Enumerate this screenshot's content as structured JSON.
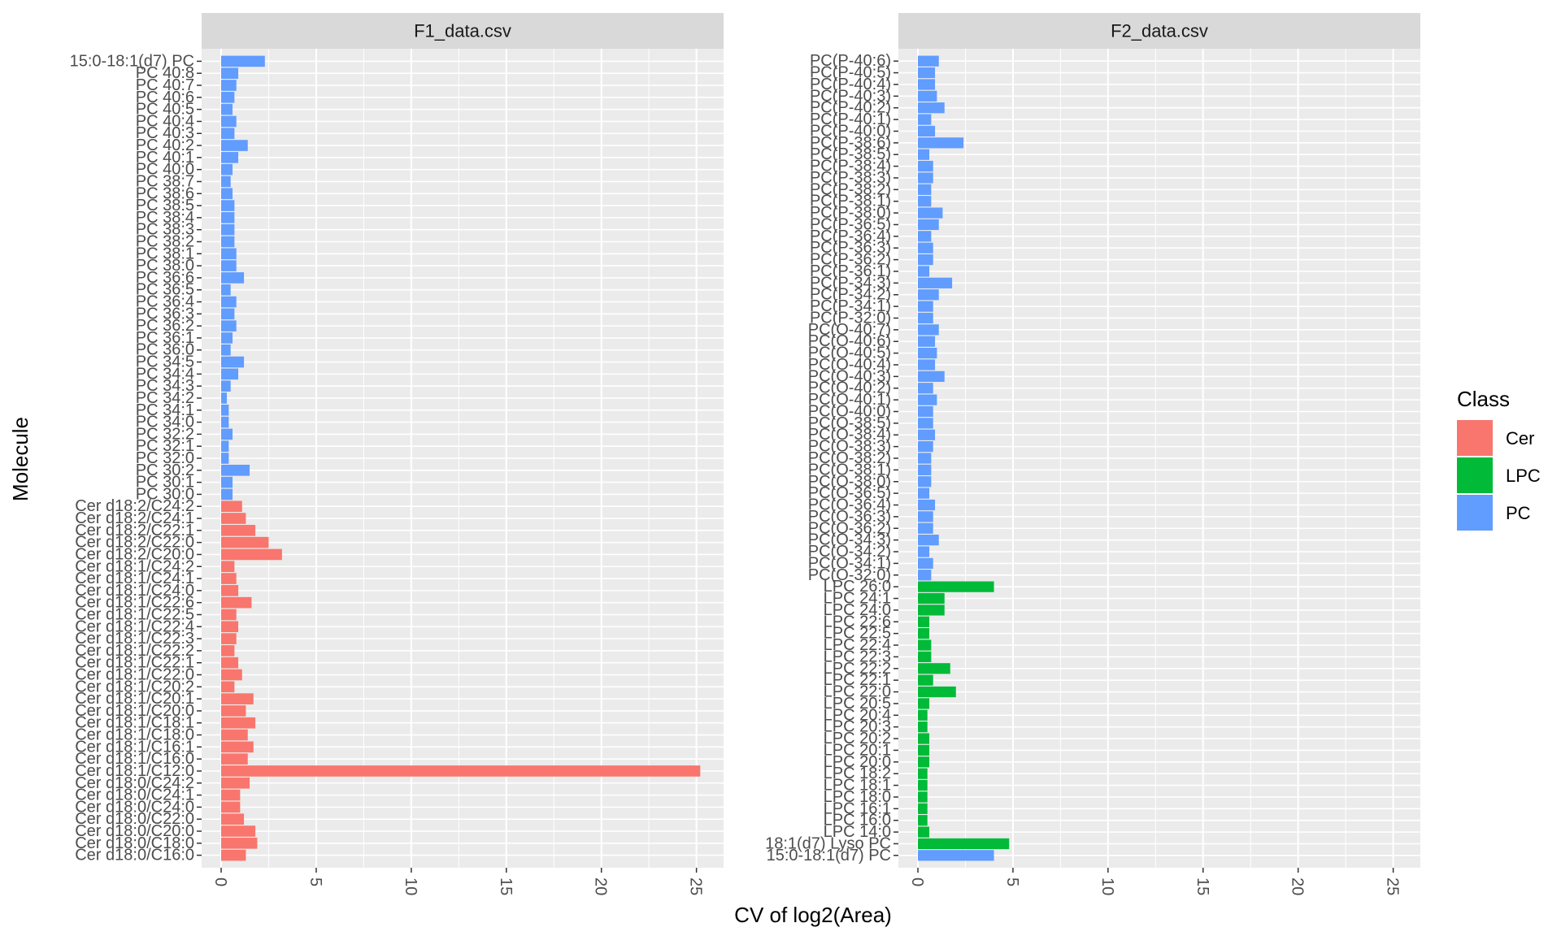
{
  "chart_data": {
    "type": "bar",
    "orientation": "horizontal",
    "xlabel": "CV of log2(Area)",
    "ylabel": "Molecule",
    "xlim": [
      0,
      26
    ],
    "x_ticks": [
      0,
      5,
      10,
      15,
      20,
      25
    ],
    "grid": true,
    "legend": {
      "title": "Class",
      "position": "right",
      "entries": [
        {
          "label": "Cer",
          "color": "#F8766D"
        },
        {
          "label": "LPC",
          "color": "#00BA38"
        },
        {
          "label": "PC",
          "color": "#619CFF"
        }
      ]
    },
    "panels": [
      {
        "title": "F1_data.csv",
        "bars": [
          {
            "label": "15:0-18:1(d7) PC",
            "value": 2.3,
            "class": "PC"
          },
          {
            "label": "PC 40:8",
            "value": 0.9,
            "class": "PC"
          },
          {
            "label": "PC 40:7",
            "value": 0.8,
            "class": "PC"
          },
          {
            "label": "PC 40:6",
            "value": 0.7,
            "class": "PC"
          },
          {
            "label": "PC 40:5",
            "value": 0.6,
            "class": "PC"
          },
          {
            "label": "PC 40:4",
            "value": 0.8,
            "class": "PC"
          },
          {
            "label": "PC 40:3",
            "value": 0.7,
            "class": "PC"
          },
          {
            "label": "PC 40:2",
            "value": 1.4,
            "class": "PC"
          },
          {
            "label": "PC 40:1",
            "value": 0.9,
            "class": "PC"
          },
          {
            "label": "PC 40:0",
            "value": 0.6,
            "class": "PC"
          },
          {
            "label": "PC 38:7",
            "value": 0.5,
            "class": "PC"
          },
          {
            "label": "PC 38:6",
            "value": 0.6,
            "class": "PC"
          },
          {
            "label": "PC 38:5",
            "value": 0.7,
            "class": "PC"
          },
          {
            "label": "PC 38:4",
            "value": 0.7,
            "class": "PC"
          },
          {
            "label": "PC 38:3",
            "value": 0.7,
            "class": "PC"
          },
          {
            "label": "PC 38:2",
            "value": 0.7,
            "class": "PC"
          },
          {
            "label": "PC 38:1",
            "value": 0.8,
            "class": "PC"
          },
          {
            "label": "PC 38:0",
            "value": 0.8,
            "class": "PC"
          },
          {
            "label": "PC 36:6",
            "value": 1.2,
            "class": "PC"
          },
          {
            "label": "PC 36:5",
            "value": 0.5,
            "class": "PC"
          },
          {
            "label": "PC 36:4",
            "value": 0.8,
            "class": "PC"
          },
          {
            "label": "PC 36:3",
            "value": 0.7,
            "class": "PC"
          },
          {
            "label": "PC 36:2",
            "value": 0.8,
            "class": "PC"
          },
          {
            "label": "PC 36:1",
            "value": 0.6,
            "class": "PC"
          },
          {
            "label": "PC 36:0",
            "value": 0.5,
            "class": "PC"
          },
          {
            "label": "PC 34:5",
            "value": 1.2,
            "class": "PC"
          },
          {
            "label": "PC 34:4",
            "value": 0.9,
            "class": "PC"
          },
          {
            "label": "PC 34:3",
            "value": 0.5,
            "class": "PC"
          },
          {
            "label": "PC 34:2",
            "value": 0.3,
            "class": "PC"
          },
          {
            "label": "PC 34:1",
            "value": 0.4,
            "class": "PC"
          },
          {
            "label": "PC 34:0",
            "value": 0.4,
            "class": "PC"
          },
          {
            "label": "PC 32:2",
            "value": 0.6,
            "class": "PC"
          },
          {
            "label": "PC 32:1",
            "value": 0.4,
            "class": "PC"
          },
          {
            "label": "PC 32:0",
            "value": 0.4,
            "class": "PC"
          },
          {
            "label": "PC 30:2",
            "value": 1.5,
            "class": "PC"
          },
          {
            "label": "PC 30:1",
            "value": 0.6,
            "class": "PC"
          },
          {
            "label": "PC 30:0",
            "value": 0.6,
            "class": "PC"
          },
          {
            "label": "Cer d18:2/C24:2",
            "value": 1.1,
            "class": "Cer"
          },
          {
            "label": "Cer d18:2/C24:1",
            "value": 1.3,
            "class": "Cer"
          },
          {
            "label": "Cer d18:2/C22:1",
            "value": 1.8,
            "class": "Cer"
          },
          {
            "label": "Cer d18:2/C22:0",
            "value": 2.5,
            "class": "Cer"
          },
          {
            "label": "Cer d18:2/C20:0",
            "value": 3.2,
            "class": "Cer"
          },
          {
            "label": "Cer d18:1/C24:2",
            "value": 0.7,
            "class": "Cer"
          },
          {
            "label": "Cer d18:1/C24:1",
            "value": 0.8,
            "class": "Cer"
          },
          {
            "label": "Cer d18:1/C24:0",
            "value": 0.9,
            "class": "Cer"
          },
          {
            "label": "Cer d18:1/C22:6",
            "value": 1.6,
            "class": "Cer"
          },
          {
            "label": "Cer d18:1/C22:5",
            "value": 0.8,
            "class": "Cer"
          },
          {
            "label": "Cer d18:1/C22:4",
            "value": 0.9,
            "class": "Cer"
          },
          {
            "label": "Cer d18:1/C22:3",
            "value": 0.8,
            "class": "Cer"
          },
          {
            "label": "Cer d18:1/C22:2",
            "value": 0.7,
            "class": "Cer"
          },
          {
            "label": "Cer d18:1/C22:1",
            "value": 0.9,
            "class": "Cer"
          },
          {
            "label": "Cer d18:1/C22:0",
            "value": 1.1,
            "class": "Cer"
          },
          {
            "label": "Cer d18:1/C20:2",
            "value": 0.7,
            "class": "Cer"
          },
          {
            "label": "Cer d18:1/C20:1",
            "value": 1.7,
            "class": "Cer"
          },
          {
            "label": "Cer d18:1/C20:0",
            "value": 1.3,
            "class": "Cer"
          },
          {
            "label": "Cer d18:1/C18:1",
            "value": 1.8,
            "class": "Cer"
          },
          {
            "label": "Cer d18:1/C18:0",
            "value": 1.4,
            "class": "Cer"
          },
          {
            "label": "Cer d18:1/C16:1",
            "value": 1.7,
            "class": "Cer"
          },
          {
            "label": "Cer d18:1/C16:0",
            "value": 1.4,
            "class": "Cer"
          },
          {
            "label": "Cer d18:1/C12:0",
            "value": 25.2,
            "class": "Cer"
          },
          {
            "label": "Cer d18:0/C24:2",
            "value": 1.5,
            "class": "Cer"
          },
          {
            "label": "Cer d18:0/C24:1",
            "value": 1.0,
            "class": "Cer"
          },
          {
            "label": "Cer d18:0/C24:0",
            "value": 1.0,
            "class": "Cer"
          },
          {
            "label": "Cer d18:0/C22:0",
            "value": 1.2,
            "class": "Cer"
          },
          {
            "label": "Cer d18:0/C20:0",
            "value": 1.8,
            "class": "Cer"
          },
          {
            "label": "Cer d18:0/C18:0",
            "value": 1.9,
            "class": "Cer"
          },
          {
            "label": "Cer d18:0/C16:0",
            "value": 1.3,
            "class": "Cer"
          }
        ]
      },
      {
        "title": "F2_data.csv",
        "bars": [
          {
            "label": "PC(P-40:6)",
            "value": 1.1,
            "class": "PC"
          },
          {
            "label": "PC(P-40:5)",
            "value": 0.9,
            "class": "PC"
          },
          {
            "label": "PC(P-40:4)",
            "value": 0.9,
            "class": "PC"
          },
          {
            "label": "PC(P-40:3)",
            "value": 1.0,
            "class": "PC"
          },
          {
            "label": "PC(P-40:2)",
            "value": 1.4,
            "class": "PC"
          },
          {
            "label": "PC(P-40:1)",
            "value": 0.7,
            "class": "PC"
          },
          {
            "label": "PC(P-40:0)",
            "value": 0.9,
            "class": "PC"
          },
          {
            "label": "PC(P-38:6)",
            "value": 2.4,
            "class": "PC"
          },
          {
            "label": "PC(P-38:5)",
            "value": 0.6,
            "class": "PC"
          },
          {
            "label": "PC(P-38:4)",
            "value": 0.8,
            "class": "PC"
          },
          {
            "label": "PC(P-38:3)",
            "value": 0.8,
            "class": "PC"
          },
          {
            "label": "PC(P-38:2)",
            "value": 0.7,
            "class": "PC"
          },
          {
            "label": "PC(P-38:1)",
            "value": 0.7,
            "class": "PC"
          },
          {
            "label": "PC(P-38:0)",
            "value": 1.3,
            "class": "PC"
          },
          {
            "label": "PC(P-36:5)",
            "value": 1.1,
            "class": "PC"
          },
          {
            "label": "PC(P-36:4)",
            "value": 0.7,
            "class": "PC"
          },
          {
            "label": "PC(P-36:3)",
            "value": 0.8,
            "class": "PC"
          },
          {
            "label": "PC(P-36:2)",
            "value": 0.8,
            "class": "PC"
          },
          {
            "label": "PC(P-36:1)",
            "value": 0.6,
            "class": "PC"
          },
          {
            "label": "PC(P-34:3)",
            "value": 1.8,
            "class": "PC"
          },
          {
            "label": "PC(P-34:2)",
            "value": 1.1,
            "class": "PC"
          },
          {
            "label": "PC(P-34:1)",
            "value": 0.8,
            "class": "PC"
          },
          {
            "label": "PC(P-32:0)",
            "value": 0.8,
            "class": "PC"
          },
          {
            "label": "PC(O-40:7)",
            "value": 1.1,
            "class": "PC"
          },
          {
            "label": "PC(O-40:6)",
            "value": 0.9,
            "class": "PC"
          },
          {
            "label": "PC(O-40:5)",
            "value": 1.0,
            "class": "PC"
          },
          {
            "label": "PC(O-40:4)",
            "value": 0.9,
            "class": "PC"
          },
          {
            "label": "PC(O-40:3)",
            "value": 1.4,
            "class": "PC"
          },
          {
            "label": "PC(O-40:2)",
            "value": 0.8,
            "class": "PC"
          },
          {
            "label": "PC(O-40:1)",
            "value": 1.0,
            "class": "PC"
          },
          {
            "label": "PC(O-40:0)",
            "value": 0.8,
            "class": "PC"
          },
          {
            "label": "PC(O-38:5)",
            "value": 0.8,
            "class": "PC"
          },
          {
            "label": "PC(O-38:4)",
            "value": 0.9,
            "class": "PC"
          },
          {
            "label": "PC(O-38:3)",
            "value": 0.8,
            "class": "PC"
          },
          {
            "label": "PC(O-38:2)",
            "value": 0.7,
            "class": "PC"
          },
          {
            "label": "PC(O-38:1)",
            "value": 0.7,
            "class": "PC"
          },
          {
            "label": "PC(O-38:0)",
            "value": 0.7,
            "class": "PC"
          },
          {
            "label": "PC(O-36:5)",
            "value": 0.6,
            "class": "PC"
          },
          {
            "label": "PC(O-36:4)",
            "value": 0.9,
            "class": "PC"
          },
          {
            "label": "PC(O-36:3)",
            "value": 0.8,
            "class": "PC"
          },
          {
            "label": "PC(O-36:2)",
            "value": 0.8,
            "class": "PC"
          },
          {
            "label": "PC(O-34:3)",
            "value": 1.1,
            "class": "PC"
          },
          {
            "label": "PC(O-34:2)",
            "value": 0.6,
            "class": "PC"
          },
          {
            "label": "PC(O-34:1)",
            "value": 0.8,
            "class": "PC"
          },
          {
            "label": "PC(O-32:0)",
            "value": 0.7,
            "class": "PC"
          },
          {
            "label": "LPC 26:0",
            "value": 4.0,
            "class": "LPC"
          },
          {
            "label": "LPC 24:1",
            "value": 1.4,
            "class": "LPC"
          },
          {
            "label": "LPC 24:0",
            "value": 1.4,
            "class": "LPC"
          },
          {
            "label": "LPC 22:6",
            "value": 0.6,
            "class": "LPC"
          },
          {
            "label": "LPC 22:5",
            "value": 0.6,
            "class": "LPC"
          },
          {
            "label": "LPC 22:4",
            "value": 0.7,
            "class": "LPC"
          },
          {
            "label": "LPC 22:3",
            "value": 0.7,
            "class": "LPC"
          },
          {
            "label": "LPC 22:2",
            "value": 1.7,
            "class": "LPC"
          },
          {
            "label": "LPC 22:1",
            "value": 0.8,
            "class": "LPC"
          },
          {
            "label": "LPC 22:0",
            "value": 2.0,
            "class": "LPC"
          },
          {
            "label": "LPC 20:5",
            "value": 0.6,
            "class": "LPC"
          },
          {
            "label": "LPC 20:4",
            "value": 0.5,
            "class": "LPC"
          },
          {
            "label": "LPC 20:3",
            "value": 0.5,
            "class": "LPC"
          },
          {
            "label": "LPC 20:2",
            "value": 0.6,
            "class": "LPC"
          },
          {
            "label": "LPC 20:1",
            "value": 0.6,
            "class": "LPC"
          },
          {
            "label": "LPC 20:0",
            "value": 0.6,
            "class": "LPC"
          },
          {
            "label": "LPC 18:2",
            "value": 0.5,
            "class": "LPC"
          },
          {
            "label": "LPC 18:1",
            "value": 0.5,
            "class": "LPC"
          },
          {
            "label": "LPC 18:0",
            "value": 0.5,
            "class": "LPC"
          },
          {
            "label": "LPC 16:1",
            "value": 0.5,
            "class": "LPC"
          },
          {
            "label": "LPC 16:0",
            "value": 0.5,
            "class": "LPC"
          },
          {
            "label": "LPC 14:0",
            "value": 0.6,
            "class": "LPC"
          },
          {
            "label": "18:1(d7) Lyso PC",
            "value": 4.8,
            "class": "LPC"
          },
          {
            "label": "15:0-18:1(d7) PC",
            "value": 4.0,
            "class": "PC"
          }
        ]
      }
    ]
  }
}
